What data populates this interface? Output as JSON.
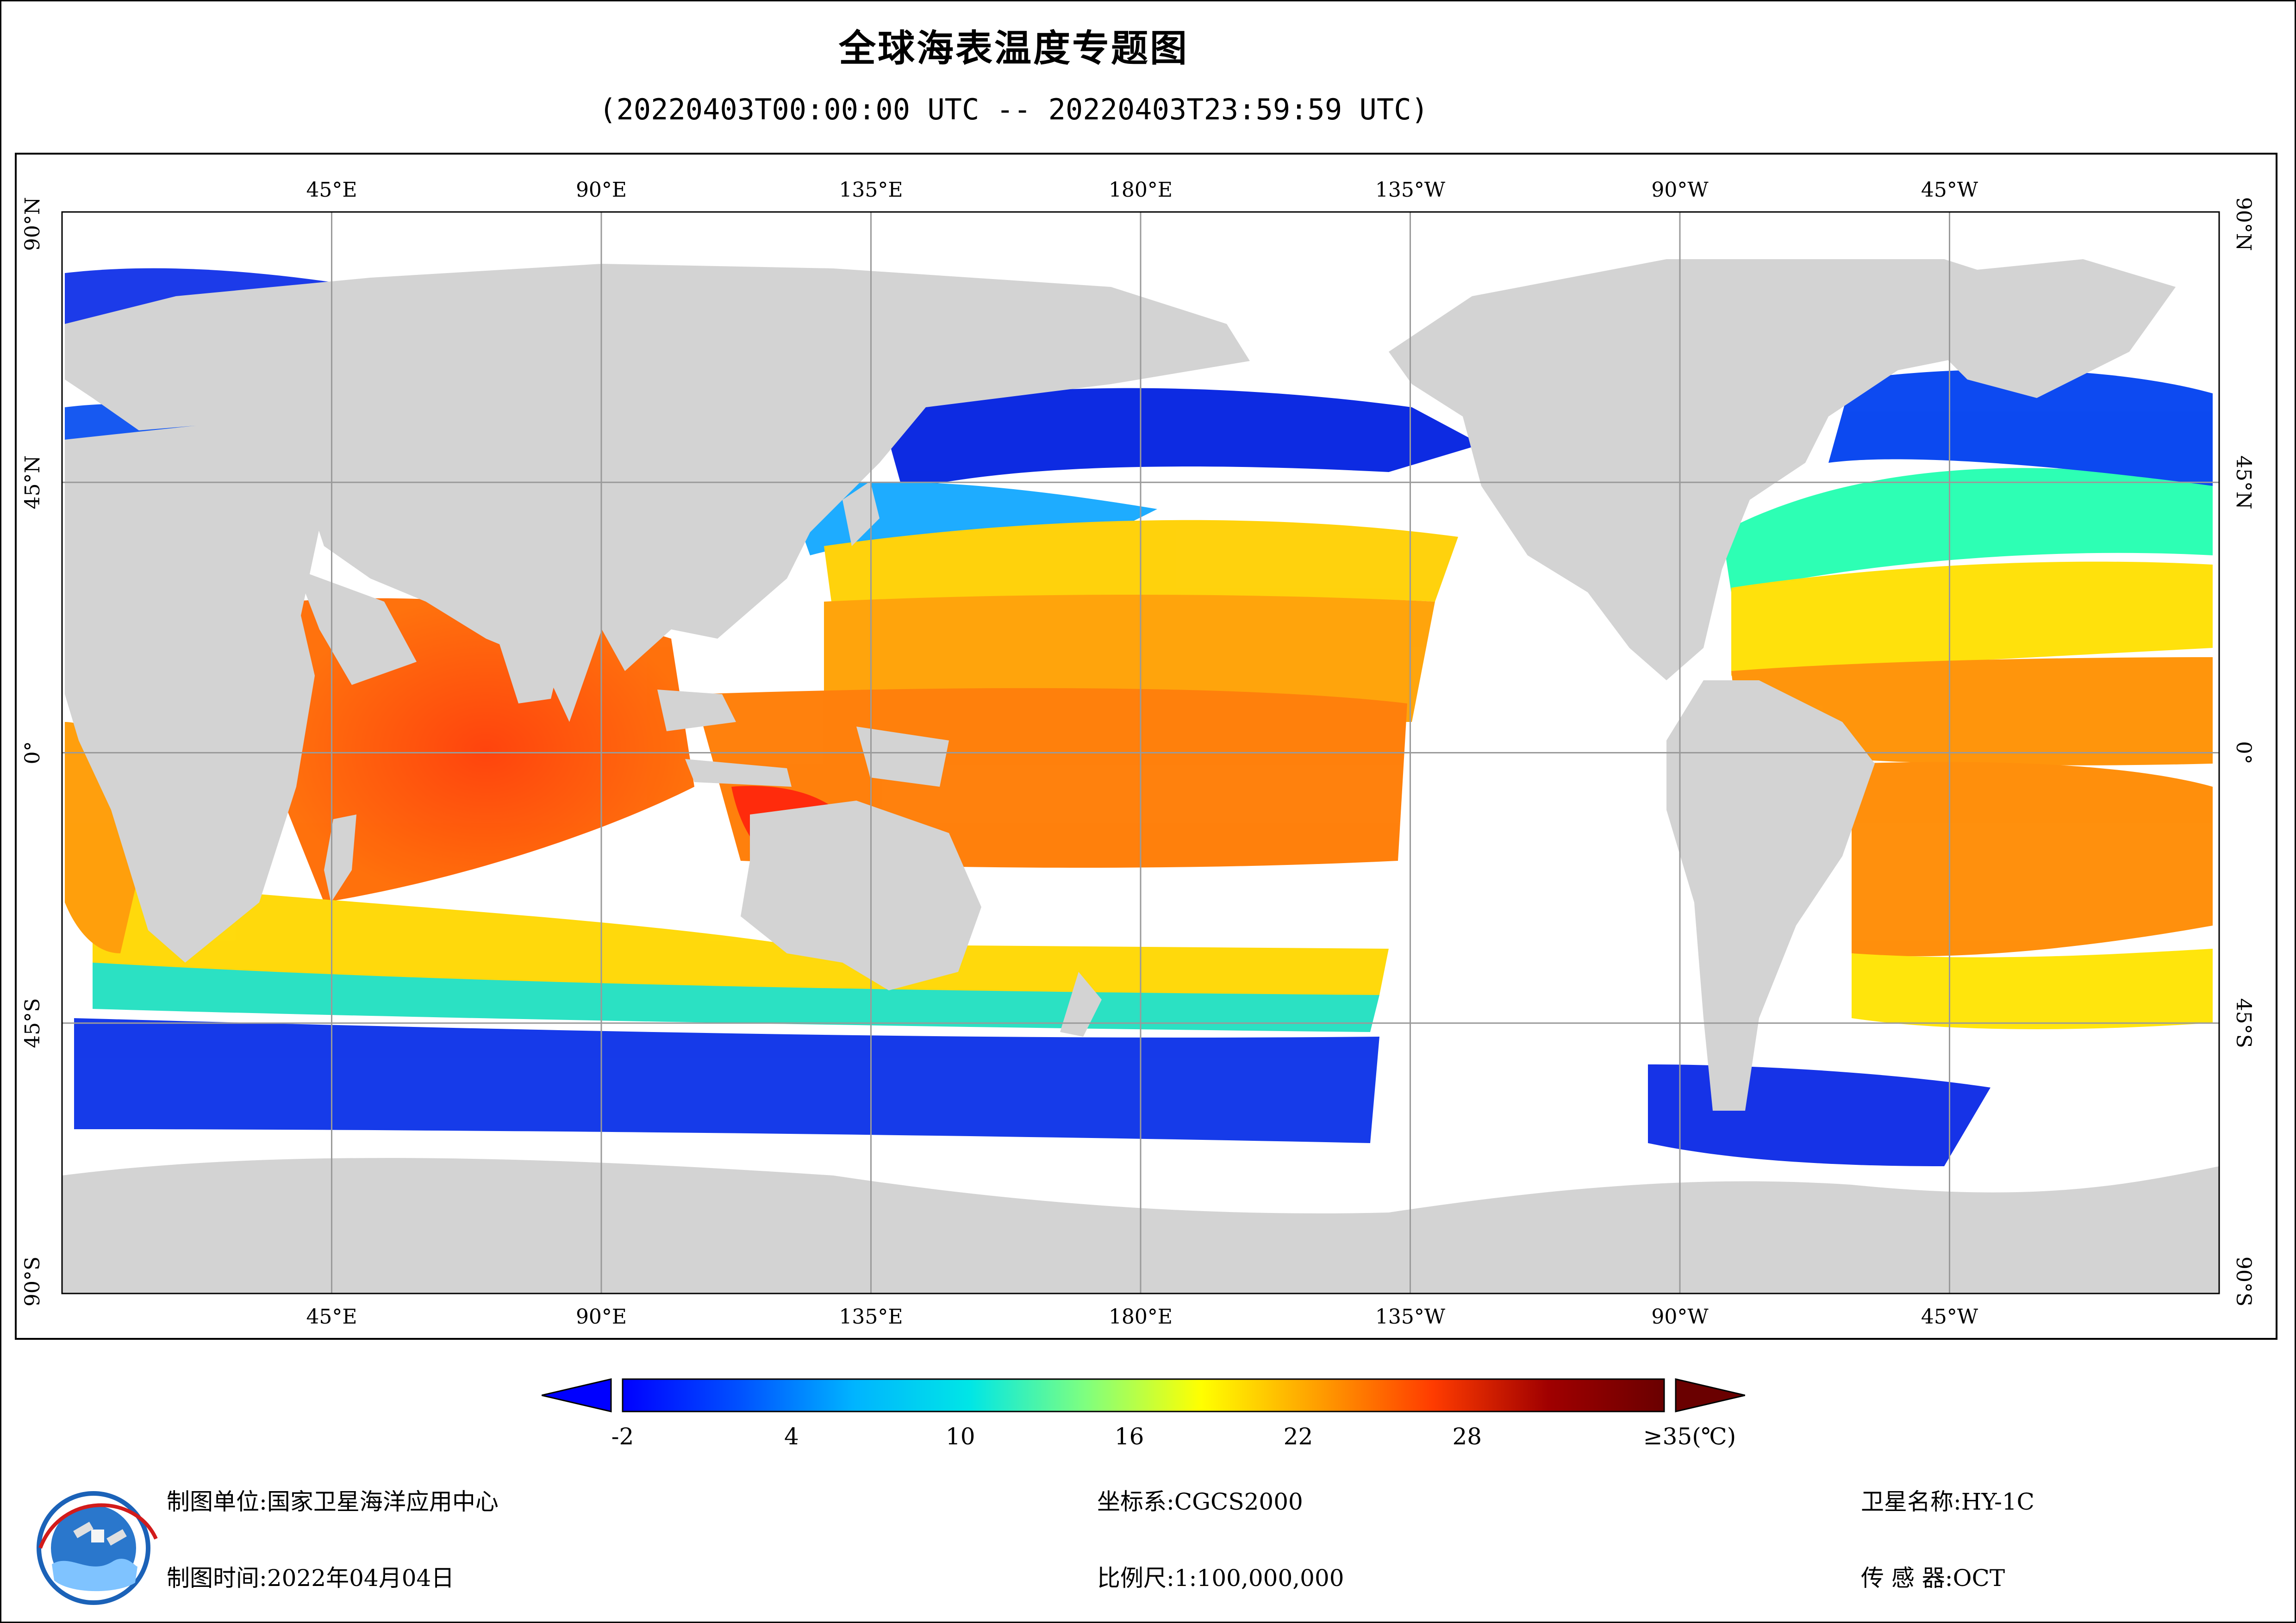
{
  "title": "全球海表温度专题图",
  "subtitle": "(20220403T00:00:00 UTC -- 20220403T23:59:59 UTC)",
  "map": {
    "top_lon_labels": [
      "45°E",
      "90°E",
      "135°E",
      "180°E",
      "135°W",
      "90°W",
      "45°W"
    ],
    "bottom_lon_labels": [
      "45°E",
      "90°E",
      "135°E",
      "180°E",
      "135°W",
      "90°W",
      "45°W"
    ],
    "left_lat_labels": [
      "90°N",
      "45°N",
      "0°",
      "45°S",
      "90°S"
    ],
    "right_lat_labels": [
      "90°N",
      "45°N",
      "0°",
      "45°S",
      "90°S"
    ],
    "colors": {
      "land": "#d3d3d3",
      "ocean_nodata": "#ffffff",
      "grid": "#9a9a9a"
    }
  },
  "colorbar": {
    "labels": [
      "-2",
      "4",
      "10",
      "16",
      "22",
      "28",
      "≥35(℃)"
    ],
    "min": -2,
    "max": 35,
    "stops": [
      "#0000ff",
      "#0050ff",
      "#00b4ff",
      "#00e6e6",
      "#7fff7f",
      "#ffff00",
      "#ff9f00",
      "#ff3c00",
      "#a00000",
      "#6a0000"
    ]
  },
  "footer": {
    "org_label": "制图单位:",
    "org_value": "国家卫星海洋应用中心",
    "time_label": "制图时间:",
    "time_value": "2022年04月04日",
    "crs_label": "坐标系:",
    "crs_value": "CGCS2000",
    "scale_label": "比例尺:",
    "scale_value": "1:100,000,000",
    "satellite_label": "卫星名称:",
    "satellite_value": "HY-1C",
    "sensor_label": "传 感 器:",
    "sensor_value": "OCT"
  }
}
